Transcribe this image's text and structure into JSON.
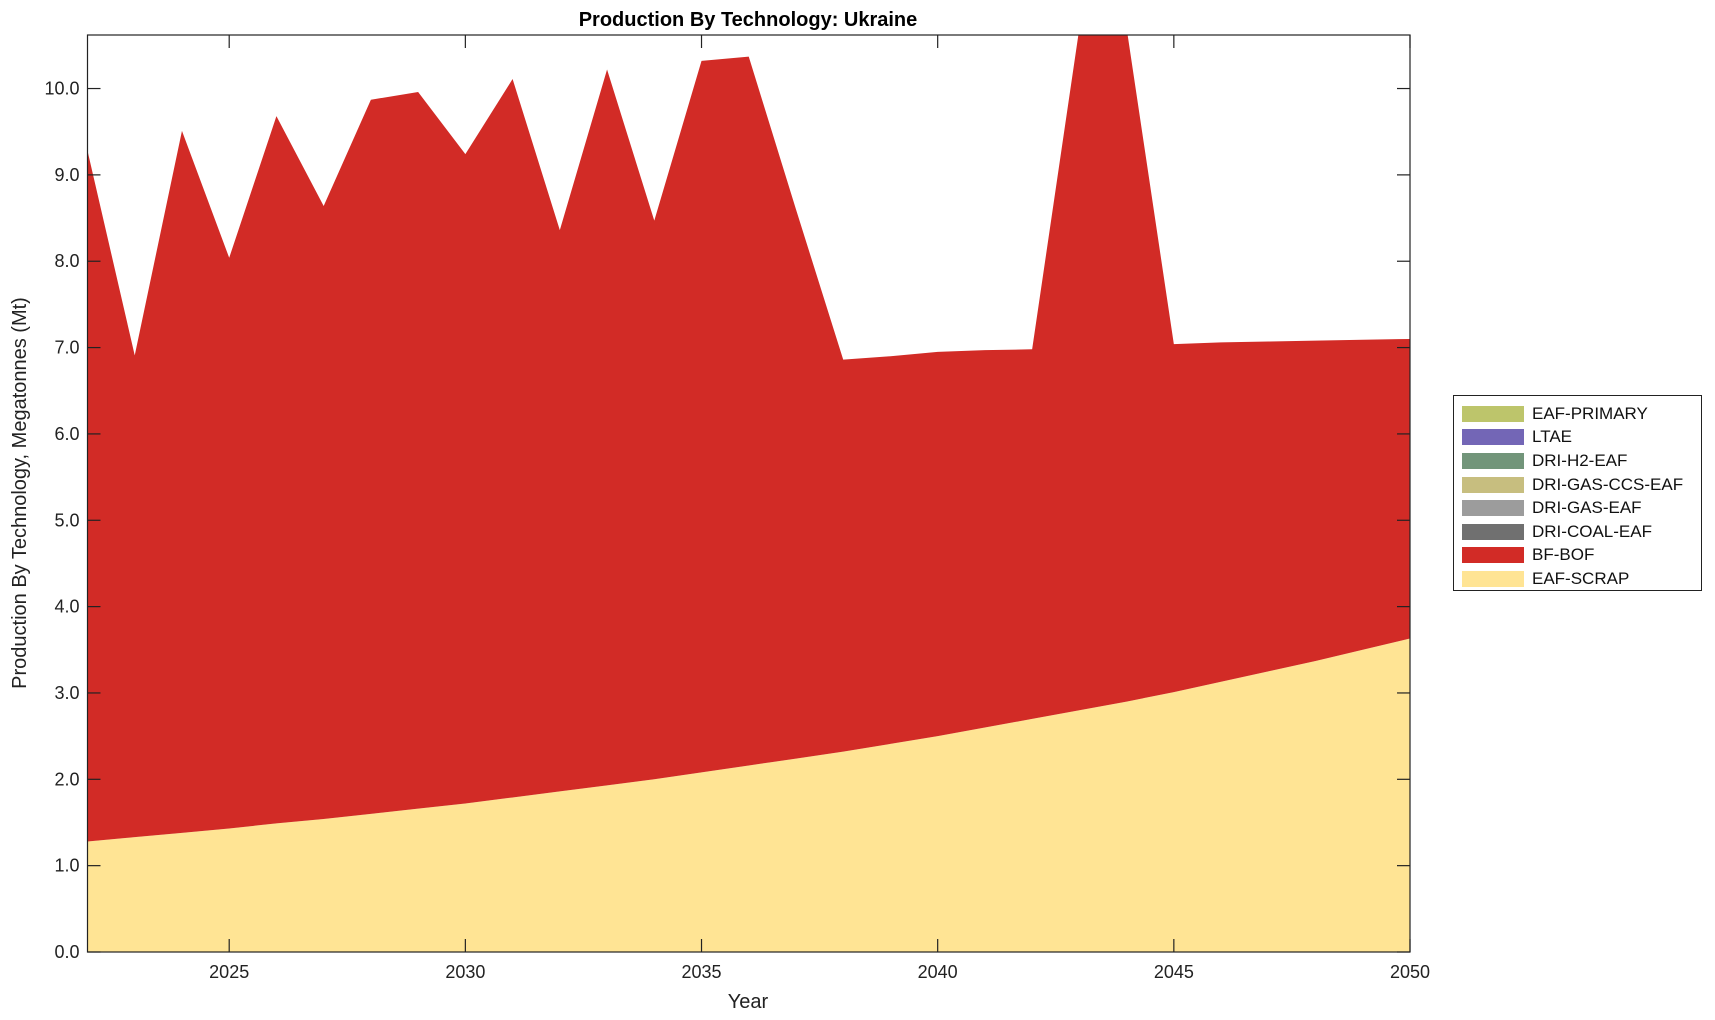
{
  "chart_data": {
    "type": "area",
    "title": "Production By Technology: Ukraine",
    "xlabel": "Year",
    "ylabel": "Production By Technology, Megatonnes (Mt)",
    "xlim": [
      2022,
      2050
    ],
    "ylim": [
      0,
      10.62
    ],
    "xticks": [
      2025,
      2030,
      2035,
      2040,
      2045,
      2050
    ],
    "yticks": [
      "0.0",
      "1.0",
      "2.0",
      "3.0",
      "4.0",
      "5.0",
      "6.0",
      "7.0",
      "8.0",
      "9.0",
      "10.0"
    ],
    "legend_position": "right",
    "x": [
      2022,
      2023,
      2024,
      2025,
      2026,
      2027,
      2028,
      2029,
      2030,
      2031,
      2032,
      2033,
      2034,
      2035,
      2036,
      2037,
      2038,
      2039,
      2040,
      2041,
      2042,
      2043,
      2044,
      2045,
      2046,
      2047,
      2048,
      2049,
      2050
    ],
    "series": [
      {
        "name": "EAF-SCRAP",
        "color": "#FFE494",
        "values": [
          1.28,
          1.33,
          1.38,
          1.43,
          1.49,
          1.54,
          1.6,
          1.66,
          1.72,
          1.79,
          1.86,
          1.93,
          2.0,
          2.08,
          2.16,
          2.24,
          2.32,
          2.41,
          2.5,
          2.6,
          2.7,
          2.8,
          2.9,
          3.01,
          3.13,
          3.25,
          3.37,
          3.5,
          3.63
        ]
      },
      {
        "name": "BF-BOF",
        "color": "#D22B26",
        "values": [
          8.0,
          5.58,
          8.13,
          6.61,
          8.19,
          7.1,
          8.27,
          8.3,
          7.52,
          8.32,
          6.5,
          8.29,
          6.47,
          8.24,
          8.21,
          6.36,
          4.54,
          4.49,
          4.45,
          4.37,
          4.28,
          7.9,
          7.8,
          4.03,
          3.93,
          3.82,
          3.71,
          3.59,
          3.47
        ]
      },
      {
        "name": "DRI-COAL-EAF",
        "color": "#707070",
        "values": [
          0,
          0,
          0,
          0,
          0,
          0,
          0,
          0,
          0,
          0,
          0,
          0,
          0,
          0,
          0,
          0,
          0,
          0,
          0,
          0,
          0,
          0,
          0,
          0,
          0,
          0,
          0,
          0,
          0
        ]
      },
      {
        "name": "DRI-GAS-EAF",
        "color": "#9C9C9C",
        "values": [
          0,
          0,
          0,
          0,
          0,
          0,
          0,
          0,
          0,
          0,
          0,
          0,
          0,
          0,
          0,
          0,
          0,
          0,
          0,
          0,
          0,
          0,
          0,
          0,
          0,
          0,
          0,
          0,
          0
        ]
      },
      {
        "name": "DRI-GAS-CCS-EAF",
        "color": "#C7BE7F",
        "values": [
          0,
          0,
          0,
          0,
          0,
          0,
          0,
          0,
          0,
          0,
          0,
          0,
          0,
          0,
          0,
          0,
          0,
          0,
          0,
          0,
          0,
          0,
          0,
          0,
          0,
          0,
          0,
          0,
          0
        ]
      },
      {
        "name": "DRI-H2-EAF",
        "color": "#72957A",
        "values": [
          0,
          0,
          0,
          0,
          0,
          0,
          0,
          0,
          0,
          0,
          0,
          0,
          0,
          0,
          0,
          0,
          0,
          0,
          0,
          0,
          0,
          0,
          0,
          0,
          0,
          0,
          0,
          0,
          0
        ]
      },
      {
        "name": "LTAE",
        "color": "#7366B6",
        "values": [
          0,
          0,
          0,
          0,
          0,
          0,
          0,
          0,
          0,
          0,
          0,
          0,
          0,
          0,
          0,
          0,
          0,
          0,
          0,
          0,
          0,
          0,
          0,
          0,
          0,
          0,
          0,
          0,
          0
        ]
      },
      {
        "name": "EAF-PRIMARY",
        "color": "#BDC56B",
        "values": [
          0,
          0,
          0,
          0,
          0,
          0,
          0,
          0,
          0,
          0,
          0,
          0,
          0,
          0,
          0,
          0,
          0,
          0,
          0,
          0,
          0,
          0,
          0,
          0,
          0,
          0,
          0,
          0,
          0
        ]
      }
    ],
    "legend": [
      "EAF-PRIMARY",
      "LTAE",
      "DRI-H2-EAF",
      "DRI-GAS-CCS-EAF",
      "DRI-GAS-EAF",
      "DRI-COAL-EAF",
      "BF-BOF",
      "EAF-SCRAP"
    ]
  }
}
